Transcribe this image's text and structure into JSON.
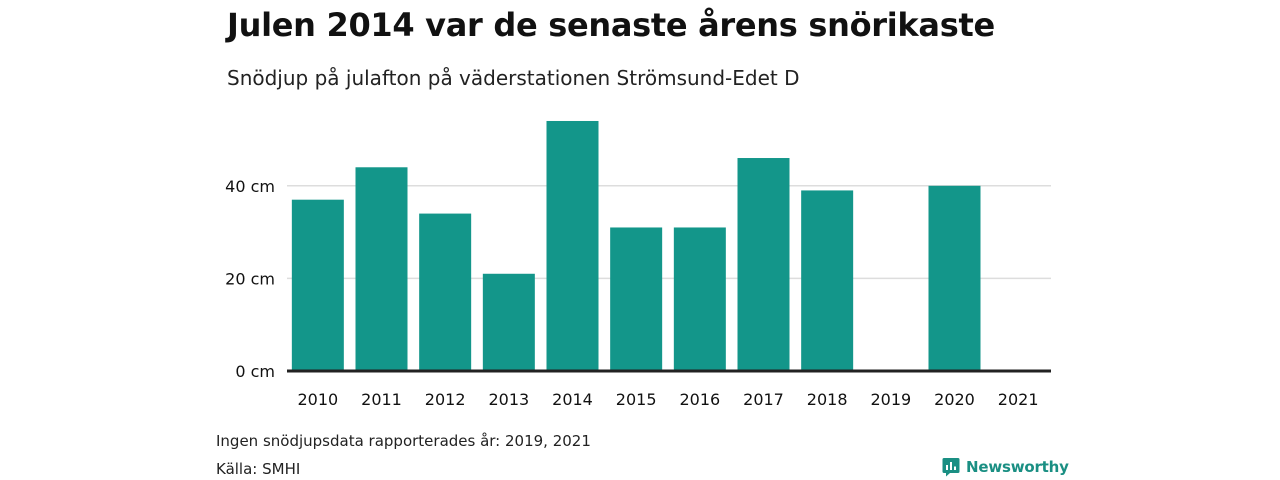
{
  "chart_data": {
    "type": "bar",
    "title": "Julen 2014 var de senaste årens snörikaste",
    "subtitle": "Snödjup på julafton på väderstationen Strömsund-Edet D",
    "categories": [
      "2010",
      "2011",
      "2012",
      "2013",
      "2014",
      "2015",
      "2016",
      "2017",
      "2018",
      "2019",
      "2020",
      "2021"
    ],
    "values": [
      37,
      44,
      34,
      21,
      54,
      31,
      31,
      46,
      39,
      null,
      40,
      null
    ],
    "yticks": [
      0,
      20,
      40
    ],
    "ytick_labels": [
      "0 cm",
      "20 cm",
      "40 cm"
    ],
    "ylim": [
      0,
      60
    ],
    "grid": true,
    "bar_color": "#13968a",
    "xlabel": "",
    "ylabel": ""
  },
  "footnote": "Ingen snödjupsdata rapporterades år: 2019, 2021",
  "source": "Källa: SMHI",
  "brand": {
    "name": "Newsworthy",
    "icon": "newsworthy-logo-icon",
    "color": "#1a8f83"
  }
}
